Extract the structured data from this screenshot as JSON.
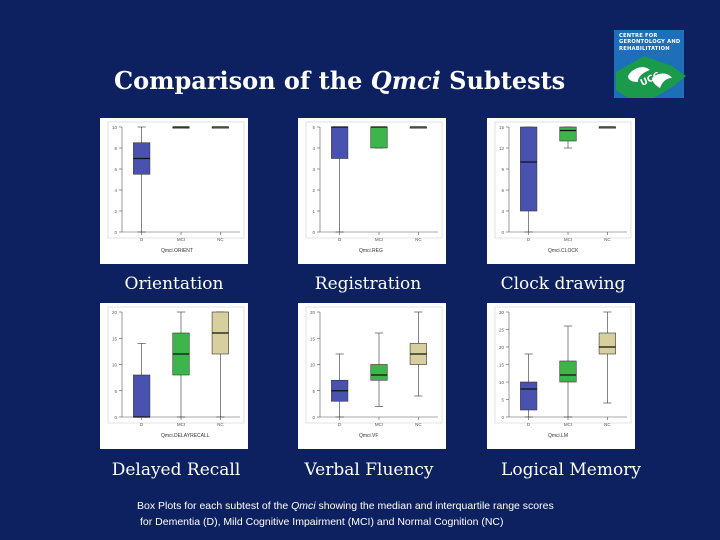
{
  "slide": {
    "title_prefix": "Comparison of the ",
    "title_italic": "Qmci",
    "title_suffix": " Subtests",
    "caption_line1_prefix": "Box Plots for each subtest of the ",
    "caption_line1_italic": "Qmci",
    "caption_line1_suffix": " showing the median and interquartile range scores",
    "caption_line2": "for Dementia (D), Mild Cognitive Impairment (MCI) and Normal Cognition (NC)"
  },
  "logo": {
    "lines": [
      "CENTRE FOR",
      "GERONTOLOGY AND",
      "REHABILITATION"
    ],
    "stamp_text": "UCC"
  },
  "colors": {
    "background": "#0d2160",
    "D": "#4a52b0",
    "MCI": "#3cb54a",
    "NC": "#d8cf9e",
    "logo_blue": "#1c6fb8",
    "logo_green": "#1a9a4a"
  },
  "chart_data": [
    {
      "type": "box",
      "label": "Orientation",
      "xlabel": "Qmci.ORIENT",
      "categories": [
        "D",
        "MCI",
        "NC"
      ],
      "ylim": [
        0,
        10
      ],
      "yticks": [
        0,
        2,
        4,
        6,
        8,
        10
      ],
      "boxes": [
        {
          "group": "D",
          "min": 0,
          "q1": 5.5,
          "median": 7,
          "q3": 8.5,
          "max": 10
        },
        {
          "group": "MCI",
          "min": 10,
          "q1": 10,
          "median": 10,
          "q3": 10,
          "max": 10
        },
        {
          "group": "NC",
          "min": 10,
          "q1": 10,
          "median": 10,
          "q3": 10,
          "max": 10
        }
      ]
    },
    {
      "type": "box",
      "label": "Registration",
      "xlabel": "Qmci.REG",
      "categories": [
        "D",
        "MCI",
        "NC"
      ],
      "ylim": [
        0,
        5
      ],
      "yticks": [
        0,
        1,
        2,
        3,
        4,
        5
      ],
      "boxes": [
        {
          "group": "D",
          "min": 0,
          "q1": 3.5,
          "median": 5,
          "q3": 5,
          "max": 5
        },
        {
          "group": "MCI",
          "min": 4,
          "q1": 4,
          "median": 5,
          "q3": 5,
          "max": 5
        },
        {
          "group": "NC",
          "min": 5,
          "q1": 5,
          "median": 5,
          "q3": 5,
          "max": 5
        }
      ]
    },
    {
      "type": "box",
      "label": "Clock drawing",
      "xlabel": "Qmci.CLOCK",
      "categories": [
        "D",
        "MCI",
        "NC"
      ],
      "ylim": [
        0,
        15
      ],
      "yticks": [
        0,
        3,
        6,
        9,
        12,
        15
      ],
      "boxes": [
        {
          "group": "D",
          "min": 0,
          "q1": 3,
          "median": 10,
          "q3": 15,
          "max": 15
        },
        {
          "group": "MCI",
          "min": 12,
          "q1": 13,
          "median": 14.5,
          "q3": 15,
          "max": 15
        },
        {
          "group": "NC",
          "min": 15,
          "q1": 15,
          "median": 15,
          "q3": 15,
          "max": 15
        }
      ]
    },
    {
      "type": "box",
      "label": "Delayed Recall",
      "xlabel": "Qmci.DELAYRECALL",
      "categories": [
        "D",
        "MCI",
        "NC"
      ],
      "ylim": [
        0,
        20
      ],
      "yticks": [
        0,
        5,
        10,
        15,
        20
      ],
      "boxes": [
        {
          "group": "D",
          "min": 0,
          "q1": 0,
          "median": 0,
          "q3": 8,
          "max": 14
        },
        {
          "group": "MCI",
          "min": 0,
          "q1": 8,
          "median": 12,
          "q3": 16,
          "max": 20
        },
        {
          "group": "NC",
          "min": 0,
          "q1": 12,
          "median": 16,
          "q3": 20,
          "max": 20
        }
      ]
    },
    {
      "type": "box",
      "label": "Verbal Fluency",
      "xlabel": "Qmci.VF",
      "categories": [
        "D",
        "MCI",
        "NC"
      ],
      "ylim": [
        0,
        20
      ],
      "yticks": [
        0,
        5,
        10,
        15,
        20
      ],
      "boxes": [
        {
          "group": "D",
          "min": 0,
          "q1": 3,
          "median": 5,
          "q3": 7,
          "max": 12
        },
        {
          "group": "MCI",
          "min": 2,
          "q1": 7,
          "median": 8,
          "q3": 10,
          "max": 16
        },
        {
          "group": "NC",
          "min": 4,
          "q1": 10,
          "median": 12,
          "q3": 14,
          "max": 20
        }
      ]
    },
    {
      "type": "box",
      "label": "Logical Memory",
      "xlabel": "Qmci.LM",
      "categories": [
        "D",
        "MCI",
        "NC"
      ],
      "ylim": [
        0,
        30
      ],
      "yticks": [
        0,
        5,
        10,
        15,
        20,
        25,
        30
      ],
      "boxes": [
        {
          "group": "D",
          "min": 0,
          "q1": 2,
          "median": 8,
          "q3": 10,
          "max": 18
        },
        {
          "group": "MCI",
          "min": 0,
          "q1": 10,
          "median": 12,
          "q3": 16,
          "max": 26
        },
        {
          "group": "NC",
          "min": 4,
          "q1": 18,
          "median": 20,
          "q3": 24,
          "max": 30
        }
      ]
    }
  ]
}
